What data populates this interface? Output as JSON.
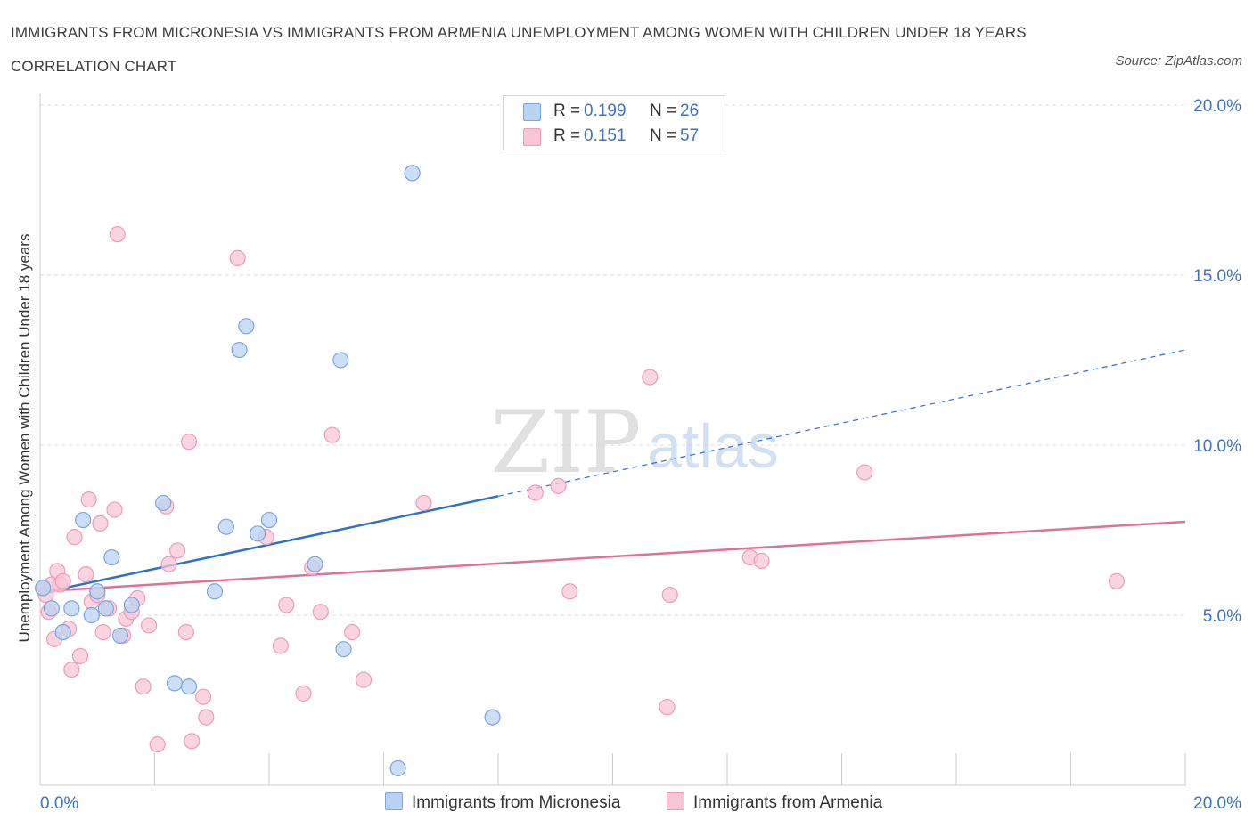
{
  "title": "IMMIGRANTS FROM MICRONESIA VS IMMIGRANTS FROM ARMENIA UNEMPLOYMENT AMONG WOMEN WITH CHILDREN UNDER 18 YEARS CORRELATION CHART",
  "source": "Source: ZipAtlas.com",
  "watermark": {
    "zip": "ZIP",
    "atlas": "atlas"
  },
  "legend": {
    "r_label": "R =",
    "n_label": "N =",
    "items": [
      {
        "name": "Immigrants from Micronesia",
        "r": "0.199",
        "n": "26"
      },
      {
        "name": "Immigrants from Armenia",
        "r": "0.151",
        "n": "57"
      }
    ]
  },
  "colors": {
    "micronesia_fill": "#b9d3f3",
    "micronesia_stroke": "#7aa6dd",
    "micronesia_line": "#2f6fce",
    "armenia_fill": "#f8c6d6",
    "armenia_stroke": "#ee9db8",
    "armenia_line": "#e0709a",
    "tick_label": "#3a72c9",
    "grid": "#dddddd"
  },
  "chart_data": {
    "type": "scatter",
    "title": "IMMIGRANTS FROM MICRONESIA VS IMMIGRANTS FROM ARMENIA UNEMPLOYMENT AMONG WOMEN WITH CHILDREN UNDER 18 YEARS CORRELATION CHART",
    "xlabel": "",
    "ylabel": "Unemployment Among Women with Children Under 18 years",
    "xlim": [
      0,
      20
    ],
    "ylim": [
      0,
      20
    ],
    "x_tick_labels": [
      "0.0%",
      "20.0%"
    ],
    "y_ticks": [
      5,
      10,
      15,
      20
    ],
    "y_tick_labels": [
      "5.0%",
      "10.0%",
      "15.0%",
      "20.0%"
    ],
    "grid": true,
    "legend_position": "top-center",
    "series": [
      {
        "name": "Immigrants from Micronesia",
        "points": [
          [
            0.05,
            5.8
          ],
          [
            0.2,
            5.2
          ],
          [
            0.4,
            4.5
          ],
          [
            0.55,
            5.2
          ],
          [
            0.75,
            7.8
          ],
          [
            0.9,
            5.0
          ],
          [
            1.0,
            5.7
          ],
          [
            1.15,
            5.2
          ],
          [
            1.25,
            6.7
          ],
          [
            1.6,
            5.3
          ],
          [
            1.4,
            4.4
          ],
          [
            2.15,
            8.3
          ],
          [
            2.35,
            3.0
          ],
          [
            2.6,
            2.9
          ],
          [
            3.05,
            5.7
          ],
          [
            3.25,
            7.6
          ],
          [
            3.48,
            12.8
          ],
          [
            3.6,
            13.5
          ],
          [
            3.8,
            7.4
          ],
          [
            4.0,
            7.8
          ],
          [
            4.8,
            6.5
          ],
          [
            5.25,
            12.5
          ],
          [
            5.3,
            4.0
          ],
          [
            6.25,
            0.5
          ],
          [
            6.5,
            18.0
          ],
          [
            7.9,
            2.0
          ]
        ],
        "trend": {
          "x0": 0,
          "y0": 5.65,
          "x1": 8.0,
          "y1": 8.5,
          "dashed_to_x": 20,
          "dashed_to_y": 12.8
        }
      },
      {
        "name": "Immigrants from Armenia",
        "points": [
          [
            0.05,
            5.8
          ],
          [
            0.1,
            5.6
          ],
          [
            0.15,
            5.1
          ],
          [
            0.2,
            5.9
          ],
          [
            0.3,
            6.3
          ],
          [
            0.35,
            5.9
          ],
          [
            0.4,
            6.0
          ],
          [
            0.5,
            4.6
          ],
          [
            0.55,
            3.4
          ],
          [
            0.6,
            7.3
          ],
          [
            0.7,
            3.8
          ],
          [
            0.8,
            6.2
          ],
          [
            0.85,
            8.4
          ],
          [
            0.9,
            5.4
          ],
          [
            1.05,
            7.7
          ],
          [
            1.1,
            4.5
          ],
          [
            1.2,
            5.2
          ],
          [
            1.3,
            8.1
          ],
          [
            1.35,
            16.2
          ],
          [
            1.45,
            4.4
          ],
          [
            1.5,
            4.9
          ],
          [
            1.6,
            5.1
          ],
          [
            1.7,
            5.5
          ],
          [
            1.8,
            2.9
          ],
          [
            1.9,
            4.7
          ],
          [
            2.05,
            1.2
          ],
          [
            2.2,
            8.2
          ],
          [
            2.25,
            6.5
          ],
          [
            2.4,
            6.9
          ],
          [
            2.55,
            4.5
          ],
          [
            2.6,
            10.1
          ],
          [
            2.65,
            1.3
          ],
          [
            2.85,
            2.6
          ],
          [
            2.9,
            2.0
          ],
          [
            3.45,
            15.5
          ],
          [
            3.95,
            7.3
          ],
          [
            4.2,
            4.1
          ],
          [
            4.3,
            5.3
          ],
          [
            4.6,
            2.7
          ],
          [
            4.75,
            6.4
          ],
          [
            4.9,
            5.1
          ],
          [
            5.1,
            10.3
          ],
          [
            5.45,
            4.5
          ],
          [
            5.65,
            3.1
          ],
          [
            6.7,
            8.3
          ],
          [
            8.65,
            8.6
          ],
          [
            9.05,
            8.8
          ],
          [
            9.25,
            5.7
          ],
          [
            10.65,
            12.0
          ],
          [
            10.95,
            2.3
          ],
          [
            11.0,
            5.6
          ],
          [
            12.4,
            6.7
          ],
          [
            12.6,
            6.6
          ],
          [
            14.4,
            9.2
          ],
          [
            18.8,
            6.0
          ],
          [
            0.25,
            4.3
          ],
          [
            1.0,
            5.6
          ]
        ],
        "trend": {
          "x0": 0,
          "y0": 5.7,
          "x1": 20,
          "y1": 7.75
        }
      }
    ]
  }
}
